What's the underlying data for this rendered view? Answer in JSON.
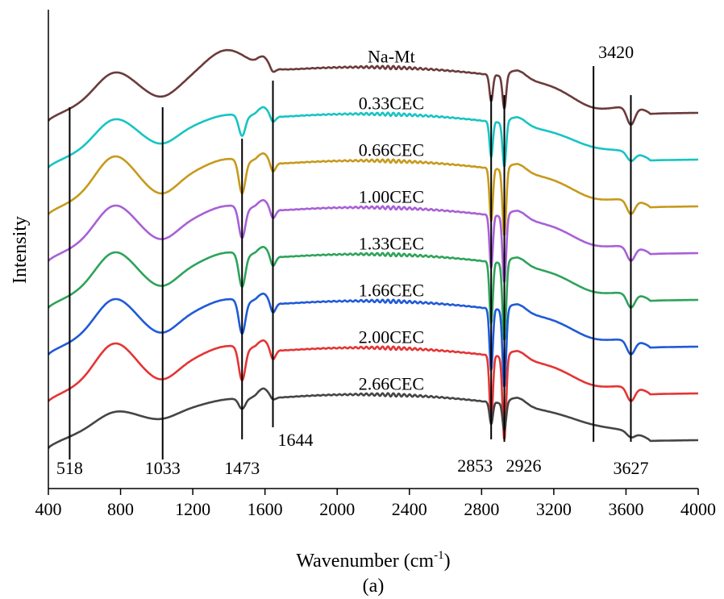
{
  "chart_data": {
    "type": "line",
    "xlabel_main": "Wavenumber (cm",
    "xlabel_sup": "-1",
    "xlabel_end": ")",
    "ylabel": "Intensity",
    "caption": "(a)",
    "xlim": [
      400,
      4000
    ],
    "xticks": [
      400,
      800,
      1200,
      1600,
      2000,
      2400,
      2800,
      3200,
      3600,
      4000
    ],
    "x_reversed": false,
    "y_ticks_shown": false,
    "grid": false,
    "legend": "none",
    "series": [
      {
        "name": "Na-Mt",
        "color": "#6b3b3b",
        "offset": 0,
        "a": 1.0,
        "b": 1.0,
        "c": 2.0,
        "d": 0.0,
        "e": 0.6,
        "p": 0.6,
        "s": 1.0,
        "label_x": 2300,
        "label_rel": 28,
        "edge_left": 0,
        "edge_right": 30
      },
      {
        "name": "0.33CEC",
        "color": "#17c4c4",
        "offset": 1,
        "a": 1.0,
        "b": 1.0,
        "c": 0.6,
        "d": 1.0,
        "e": 0.8,
        "p": 0.8,
        "s": 0.5,
        "label_x": 2300,
        "label_rel": 22,
        "edge_left": 0,
        "edge_right": 25
      },
      {
        "name": "0.66CEC",
        "color": "#c79a1c",
        "offset": 2,
        "a": 1.4,
        "b": 1.3,
        "c": 0.8,
        "d": 1.6,
        "e": 1.2,
        "p": 1.2,
        "s": 0.8,
        "label_x": 2300,
        "label_rel": 20,
        "edge_left": 5,
        "edge_right": 25
      },
      {
        "name": "1.00CEC",
        "color": "#a860d6",
        "offset": 3,
        "a": 1.3,
        "b": 1.2,
        "c": 0.8,
        "d": 1.5,
        "e": 1.2,
        "p": 1.2,
        "s": 0.8,
        "label_x": 2300,
        "label_rel": 32,
        "edge_left": 5,
        "edge_right": 20
      },
      {
        "name": "1.33CEC",
        "color": "#2ea35a",
        "offset": 4,
        "a": 1.3,
        "b": 1.2,
        "c": 0.8,
        "d": 1.6,
        "e": 1.4,
        "p": 1.3,
        "s": 0.8,
        "label_x": 2300,
        "label_rel": 22,
        "edge_left": 5,
        "edge_right": 25
      },
      {
        "name": "1.66CEC",
        "color": "#1f5ad8",
        "offset": 5,
        "a": 1.3,
        "b": 1.2,
        "c": 0.8,
        "d": 1.6,
        "e": 1.4,
        "p": 1.3,
        "s": 0.8,
        "label_x": 2300,
        "label_rel": 28,
        "edge_left": 5,
        "edge_right": 20
      },
      {
        "name": "2.00CEC",
        "color": "#e53434",
        "offset": 6,
        "a": 1.4,
        "b": 1.2,
        "c": 0.8,
        "d": 1.6,
        "e": 1.5,
        "p": 1.3,
        "s": 0.8,
        "label_x": 2300,
        "label_rel": 25,
        "edge_left": 5,
        "edge_right": 20
      },
      {
        "name": "2.66CEC",
        "color": "#454545",
        "offset": 7,
        "a": 0.5,
        "b": 0.5,
        "c": 0.3,
        "d": 0.5,
        "e": 0.5,
        "p": 0.4,
        "s": 0.3,
        "label_x": 2300,
        "label_rel": 16,
        "edge_left": 0,
        "edge_right": 10
      }
    ],
    "annotations": [
      {
        "label": "518",
        "x": 518
      },
      {
        "label": "1033",
        "x": 1033
      },
      {
        "label": "1473",
        "x": 1473
      },
      {
        "label": "1644",
        "x": 1644
      },
      {
        "label": "2853",
        "x": 2853
      },
      {
        "label": "2926",
        "x": 2926
      },
      {
        "label": "3420",
        "x": 3420
      },
      {
        "label": "3627",
        "x": 3627
      }
    ]
  }
}
